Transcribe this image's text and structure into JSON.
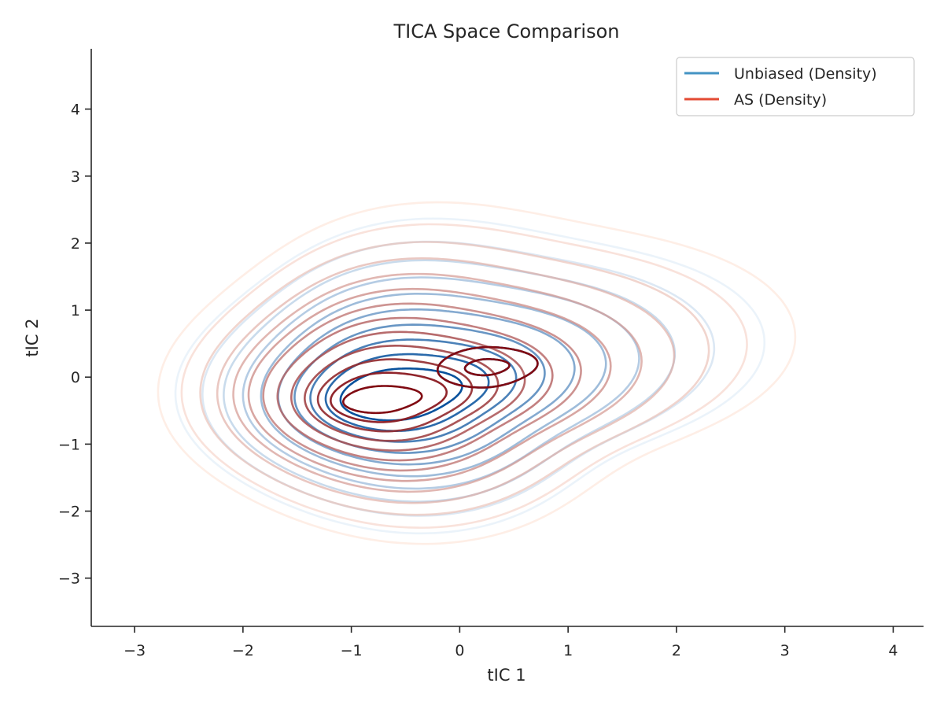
{
  "chart_data": {
    "type": "contour",
    "title": "TICA Space Comparison",
    "xlabel": "tIC 1",
    "ylabel": "tIC 2",
    "xlim": [
      -3.4,
      4.28
    ],
    "ylim": [
      -3.72,
      4.9
    ],
    "x_ticks": [
      -3,
      -2,
      -1,
      0,
      1,
      2,
      3,
      4
    ],
    "y_ticks": [
      -3,
      -2,
      -1,
      0,
      1,
      2,
      3,
      4
    ],
    "x_tick_labels": [
      "−3",
      "−2",
      "−1",
      "0",
      "1",
      "2",
      "3",
      "4"
    ],
    "y_tick_labels": [
      "−3",
      "−2",
      "−1",
      "0",
      "1",
      "2",
      "3",
      "4"
    ],
    "grid": false,
    "legend_position": "top-right",
    "colors": {
      "unbiased": "#4393c3",
      "as": "#e34a33"
    },
    "series": [
      {
        "name": "Unbiased (Density)",
        "kind": "density-contours",
        "colormap": "Blues",
        "light_color": "#dbe9f6",
        "dark_color": "#08519c",
        "levels": 10,
        "modes": [
          {
            "x": -0.75,
            "y": -0.35,
            "peak": 1.0
          },
          {
            "x": 0.3,
            "y": 0.2,
            "peak": 0.85
          }
        ],
        "approx_extent": {
          "x": [
            -2.5,
            2.6
          ],
          "y": [
            -2.3,
            3.0
          ]
        }
      },
      {
        "name": "AS (Density)",
        "kind": "density-contours",
        "colormap": "Reds",
        "light_color": "#fee0d2",
        "dark_color": "#800a12",
        "levels": 13,
        "modes": [
          {
            "x": -0.75,
            "y": -0.35,
            "peak": 1.0
          },
          {
            "x": 0.3,
            "y": 0.2,
            "peak": 0.8
          }
        ],
        "approx_extent": {
          "x": [
            -2.7,
            2.7
          ],
          "y": [
            -2.4,
            3.15
          ]
        }
      }
    ]
  }
}
